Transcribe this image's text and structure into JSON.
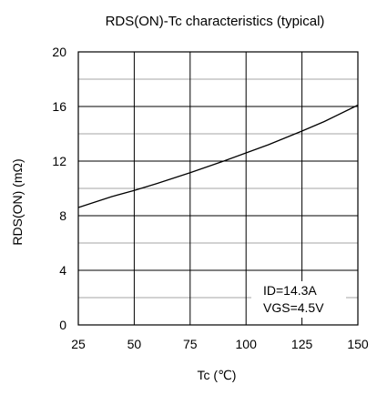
{
  "chart_data": {
    "type": "line",
    "title": "RDS(ON)-Tc characteristics (typical)",
    "xlabel": "Tc (℃)",
    "ylabel": "RDS(ON) (mΩ)",
    "xlim": [
      25,
      150
    ],
    "ylim": [
      0,
      20
    ],
    "xticks": [
      25,
      50,
      75,
      100,
      125,
      150
    ],
    "yticks": [
      0,
      4,
      8,
      12,
      16,
      20
    ],
    "grid": true,
    "series": [
      {
        "x": [
          25,
          40,
          50,
          60,
          75,
          90,
          100,
          110,
          125,
          135,
          150
        ],
        "y": [
          8.6,
          9.4,
          9.85,
          10.35,
          11.15,
          12.0,
          12.6,
          13.2,
          14.2,
          14.9,
          16.1
        ]
      }
    ],
    "annotations": [
      "ID=14.3A",
      "VGS=4.5V"
    ]
  }
}
